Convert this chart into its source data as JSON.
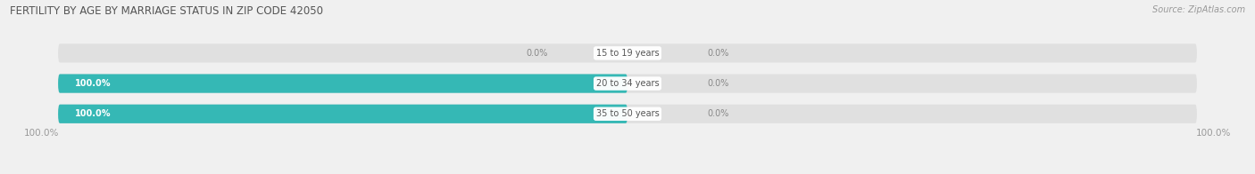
{
  "title": "FERTILITY BY AGE BY MARRIAGE STATUS IN ZIP CODE 42050",
  "source": "Source: ZipAtlas.com",
  "categories": [
    "15 to 19 years",
    "20 to 34 years",
    "35 to 50 years"
  ],
  "married_values": [
    0.0,
    100.0,
    100.0
  ],
  "unmarried_values": [
    0.0,
    0.0,
    0.0
  ],
  "married_color": "#35b8b5",
  "unmarried_color": "#f5a0b5",
  "bar_bg_color": "#e0e0e0",
  "bar_height": 0.62,
  "title_fontsize": 8.5,
  "label_fontsize": 7.0,
  "tick_fontsize": 7.5,
  "source_fontsize": 7.0,
  "legend_fontsize": 7.5,
  "x_left_label": "100.0%",
  "x_right_label": "100.0%",
  "background_color": "#ffffff",
  "fig_bg_color": "#f0f0f0"
}
